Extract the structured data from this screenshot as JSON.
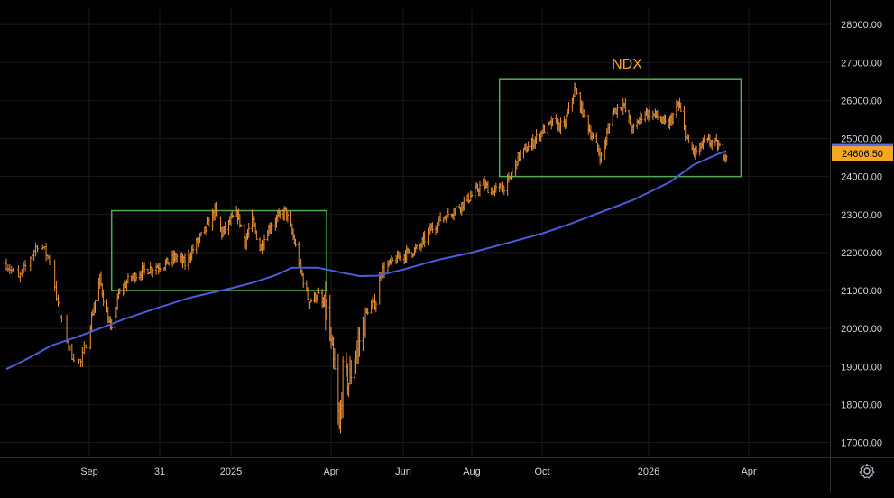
{
  "chart_data": {
    "type": "ohlc",
    "title": "NDX",
    "colors": {
      "background": "#000000",
      "bars": "#e8913a",
      "moving_average": "#4d5bd8",
      "boxes": "#4caf50",
      "title": "#f5a623",
      "grid": "#1a1a1a",
      "axis_text": "#d1d4dc",
      "ma_label_bg": "#5c6bf0",
      "price_label_bg": "#f5a623"
    },
    "grid": true,
    "y_axis": {
      "position": "right",
      "range": [
        16700,
        28200
      ],
      "ticks": [
        "17000.00",
        "18000.00",
        "19000.00",
        "20000.00",
        "21000.00",
        "22000.00",
        "23000.00",
        "24000.00",
        "25000.00",
        "26000.00",
        "27000.00",
        "28000.00"
      ]
    },
    "x_axis": {
      "ticks": [
        "Sep",
        "31",
        "2025",
        "Apr",
        "Jun",
        "Aug",
        "Oct",
        "2026",
        "Apr"
      ]
    },
    "last_values": {
      "moving_average": "24665.53",
      "price": "24606.50"
    },
    "ma_series": [
      {
        "x": "2024-07-15",
        "y": 18930
      },
      {
        "x": "2024-07-25",
        "y": 19150
      },
      {
        "x": "2024-08-10",
        "y": 19550
      },
      {
        "x": "2024-08-25",
        "y": 19780
      },
      {
        "x": "2024-09-10",
        "y": 20000
      },
      {
        "x": "2024-10-01",
        "y": 20250
      },
      {
        "x": "2024-10-25",
        "y": 20500
      },
      {
        "x": "2024-11-25",
        "y": 20800
      },
      {
        "x": "2024-12-31",
        "y": 21050
      },
      {
        "x": "2025-01-20",
        "y": 21200
      },
      {
        "x": "2025-02-10",
        "y": 21400
      },
      {
        "x": "2025-02-25",
        "y": 21600
      },
      {
        "x": "2025-03-20",
        "y": 21600
      },
      {
        "x": "2025-04-10",
        "y": 21470
      },
      {
        "x": "2025-04-25",
        "y": 21380
      },
      {
        "x": "2025-05-10",
        "y": 21390
      },
      {
        "x": "2025-06-01",
        "y": 21550
      },
      {
        "x": "2025-07-01",
        "y": 21800
      },
      {
        "x": "2025-08-01",
        "y": 22000
      },
      {
        "x": "2025-09-01",
        "y": 22250
      },
      {
        "x": "2025-10-01",
        "y": 22500
      },
      {
        "x": "2025-10-25",
        "y": 22750
      },
      {
        "x": "2025-11-20",
        "y": 23050
      },
      {
        "x": "2025-12-20",
        "y": 23400
      },
      {
        "x": "2026-01-20",
        "y": 23850
      },
      {
        "x": "2026-02-10",
        "y": 24300
      },
      {
        "x": "2026-03-05",
        "y": 24600
      },
      {
        "x": "2026-03-12",
        "y": 24665
      }
    ],
    "price_path": [
      {
        "x": "2024-07-15",
        "y": 21700
      },
      {
        "x": "2024-07-22",
        "y": 21300
      },
      {
        "x": "2024-07-28",
        "y": 21800
      },
      {
        "x": "2024-08-03",
        "y": 22300
      },
      {
        "x": "2024-08-10",
        "y": 21700
      },
      {
        "x": "2024-08-15",
        "y": 20300
      },
      {
        "x": "2024-08-22",
        "y": 19300
      },
      {
        "x": "2024-08-27",
        "y": 19100
      },
      {
        "x": "2024-09-03",
        "y": 20300
      },
      {
        "x": "2024-09-10",
        "y": 21300
      },
      {
        "x": "2024-09-15",
        "y": 20500
      },
      {
        "x": "2024-09-20",
        "y": 19900
      },
      {
        "x": "2024-09-26",
        "y": 20900
      },
      {
        "x": "2024-10-05",
        "y": 21300
      },
      {
        "x": "2024-10-15",
        "y": 21500
      },
      {
        "x": "2024-10-25",
        "y": 21600
      },
      {
        "x": "2024-11-05",
        "y": 21700
      },
      {
        "x": "2024-11-15",
        "y": 21900
      },
      {
        "x": "2024-11-22",
        "y": 21700
      },
      {
        "x": "2024-12-01",
        "y": 22200
      },
      {
        "x": "2024-12-10",
        "y": 22600
      },
      {
        "x": "2024-12-18",
        "y": 23100
      },
      {
        "x": "2024-12-24",
        "y": 22500
      },
      {
        "x": "2024-12-31",
        "y": 22800
      },
      {
        "x": "2025-01-07",
        "y": 23000
      },
      {
        "x": "2025-01-14",
        "y": 22300
      },
      {
        "x": "2025-01-20",
        "y": 22900
      },
      {
        "x": "2025-01-27",
        "y": 22100
      },
      {
        "x": "2025-02-05",
        "y": 22700
      },
      {
        "x": "2025-02-12",
        "y": 22900
      },
      {
        "x": "2025-02-19",
        "y": 23100
      },
      {
        "x": "2025-02-26",
        "y": 22400
      },
      {
        "x": "2025-03-05",
        "y": 21500
      },
      {
        "x": "2025-03-12",
        "y": 20700
      },
      {
        "x": "2025-03-20",
        "y": 20900
      },
      {
        "x": "2025-03-28",
        "y": 20400
      },
      {
        "x": "2025-04-04",
        "y": 18800
      },
      {
        "x": "2025-04-08",
        "y": 17300
      },
      {
        "x": "2025-04-11",
        "y": 18800
      },
      {
        "x": "2025-04-16",
        "y": 18600
      },
      {
        "x": "2025-04-25",
        "y": 19700
      },
      {
        "x": "2025-05-02",
        "y": 20500
      },
      {
        "x": "2025-05-09",
        "y": 20700
      },
      {
        "x": "2025-05-13",
        "y": 21500
      },
      {
        "x": "2025-05-25",
        "y": 21800
      },
      {
        "x": "2025-06-05",
        "y": 22000
      },
      {
        "x": "2025-06-15",
        "y": 22100
      },
      {
        "x": "2025-06-25",
        "y": 22600
      },
      {
        "x": "2025-07-05",
        "y": 22900
      },
      {
        "x": "2025-07-20",
        "y": 23200
      },
      {
        "x": "2025-08-01",
        "y": 23500
      },
      {
        "x": "2025-08-10",
        "y": 23800
      },
      {
        "x": "2025-08-20",
        "y": 23600
      },
      {
        "x": "2025-09-01",
        "y": 23800
      },
      {
        "x": "2025-09-10",
        "y": 24500
      },
      {
        "x": "2025-09-20",
        "y": 24800
      },
      {
        "x": "2025-10-01",
        "y": 25200
      },
      {
        "x": "2025-10-10",
        "y": 25400
      },
      {
        "x": "2025-10-20",
        "y": 25300
      },
      {
        "x": "2025-10-29",
        "y": 26300
      },
      {
        "x": "2025-11-05",
        "y": 25700
      },
      {
        "x": "2025-11-14",
        "y": 25000
      },
      {
        "x": "2025-11-21",
        "y": 24500
      },
      {
        "x": "2025-12-01",
        "y": 25700
      },
      {
        "x": "2025-12-10",
        "y": 25900
      },
      {
        "x": "2025-12-18",
        "y": 25200
      },
      {
        "x": "2025-12-28",
        "y": 25700
      },
      {
        "x": "2026-01-08",
        "y": 25600
      },
      {
        "x": "2026-01-18",
        "y": 25300
      },
      {
        "x": "2026-01-28",
        "y": 25900
      },
      {
        "x": "2026-02-05",
        "y": 24900
      },
      {
        "x": "2026-02-12",
        "y": 24600
      },
      {
        "x": "2026-02-20",
        "y": 24900
      },
      {
        "x": "2026-03-01",
        "y": 24900
      },
      {
        "x": "2026-03-10",
        "y": 24600
      }
    ],
    "boxes": [
      {
        "x0": "2024-09-20",
        "x1": "2025-03-28",
        "y0": 21000,
        "y1": 23100
      },
      {
        "x0": "2025-08-25",
        "x1": "2026-03-25",
        "y0": 24000,
        "y1": 26550
      }
    ]
  }
}
